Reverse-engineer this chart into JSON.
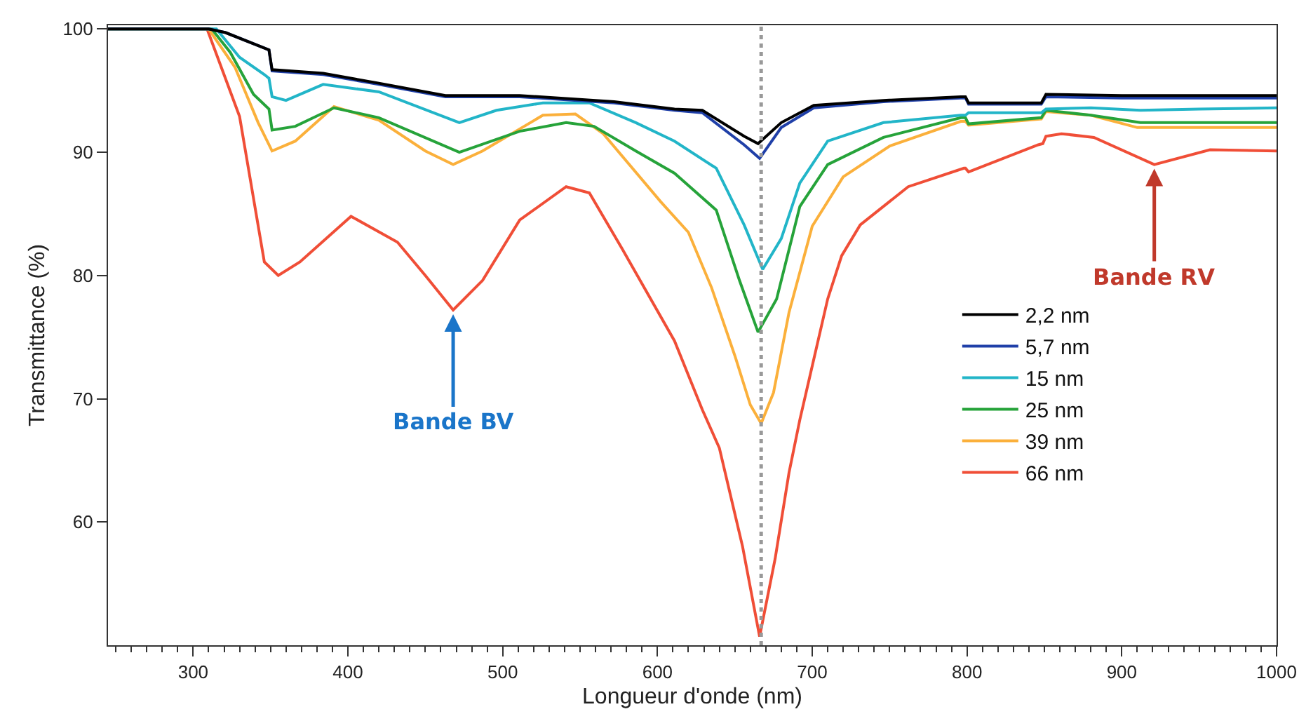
{
  "chart_data": {
    "type": "line",
    "xlabel": "Longueur d'onde (nm)",
    "ylabel": "Transmittance (%)",
    "xlim": [
      245,
      1000
    ],
    "ylim": [
      50,
      100.3
    ],
    "xticks": [
      300,
      400,
      500,
      600,
      700,
      800,
      900,
      1000
    ],
    "yticks": [
      60,
      70,
      80,
      90,
      100
    ],
    "grid": false,
    "legend": "right",
    "marker": "none",
    "line_style": "solid",
    "ref_lines": [
      {
        "axis": "x",
        "value": 667,
        "color": "#999999",
        "line_style": "dotted"
      }
    ],
    "annotations": [
      {
        "text": "Bande BV",
        "x": 468,
        "y": 77.2
      },
      {
        "text": "Bande RV",
        "x": 921,
        "y": 89.0
      }
    ],
    "series": [
      {
        "name": "2,2 nm",
        "color": "#000000",
        "x": [
          245,
          310,
          321,
          345,
          349,
          351,
          384,
          420,
          463,
          511,
          572,
          611,
          629,
          656,
          665,
          680,
          701,
          746,
          796,
          799,
          801,
          848,
          851,
          900,
          1000
        ],
        "values": [
          100,
          100,
          99.7,
          98.5,
          98.3,
          96.7,
          96.4,
          95.6,
          94.6,
          94.6,
          94.1,
          93.5,
          93.4,
          91.3,
          90.7,
          92.4,
          93.8,
          94.2,
          94.5,
          94.5,
          94.0,
          94.0,
          94.7,
          94.6,
          94.6
        ]
      },
      {
        "name": "5,7 nm",
        "color": "#1f3fa8",
        "x": [
          245,
          310,
          321,
          345,
          349,
          351,
          384,
          420,
          463,
          511,
          572,
          611,
          629,
          656,
          666,
          680,
          701,
          746,
          796,
          799,
          801,
          848,
          851,
          900,
          1000
        ],
        "values": [
          100,
          100,
          99.7,
          98.5,
          98.3,
          96.6,
          96.3,
          95.5,
          94.5,
          94.5,
          94.0,
          93.4,
          93.2,
          90.6,
          89.5,
          92.0,
          93.6,
          94.1,
          94.4,
          94.4,
          93.9,
          93.9,
          94.5,
          94.4,
          94.4
        ]
      },
      {
        "name": "15 nm",
        "color": "#22b5c8",
        "x": [
          245,
          315,
          330,
          346,
          349,
          351,
          360,
          384,
          420,
          472,
          496,
          526,
          556,
          586,
          611,
          638,
          656,
          668,
          680,
          692,
          710,
          746,
          796,
          799,
          801,
          848,
          851,
          880,
          912,
          950,
          1000
        ],
        "values": [
          100,
          100,
          97.7,
          96.3,
          96.0,
          94.5,
          94.2,
          95.5,
          94.9,
          92.4,
          93.4,
          94.0,
          94.0,
          92.4,
          90.9,
          88.7,
          84.1,
          80.5,
          83.0,
          87.5,
          90.9,
          92.4,
          93.0,
          93.0,
          93.2,
          93.2,
          93.5,
          93.6,
          93.4,
          93.5,
          93.6
        ]
      },
      {
        "name": "25 nm",
        "color": "#26a33a",
        "x": [
          245,
          312,
          324,
          339,
          349,
          351,
          366,
          391,
          420,
          472,
          511,
          541,
          559,
          586,
          611,
          638,
          653,
          665,
          677,
          692,
          710,
          746,
          796,
          799,
          801,
          848,
          851,
          880,
          912,
          950,
          1000
        ],
        "values": [
          100,
          100,
          98.1,
          94.7,
          93.5,
          91.8,
          92.1,
          93.6,
          92.8,
          90.0,
          91.7,
          92.4,
          92.1,
          90.1,
          88.3,
          85.3,
          79.6,
          75.4,
          78.1,
          85.6,
          89.0,
          91.2,
          92.8,
          92.8,
          92.3,
          92.8,
          93.4,
          93.0,
          92.4,
          92.4,
          92.4
        ]
      },
      {
        "name": "39 nm",
        "color": "#fbb03b",
        "x": [
          245,
          310,
          327,
          342,
          351,
          366,
          391,
          420,
          450,
          468,
          487,
          526,
          547,
          565,
          602,
          620,
          635,
          650,
          660,
          667,
          675,
          685,
          700,
          720,
          750,
          796,
          799,
          801,
          848,
          851,
          880,
          910,
          940,
          1000
        ],
        "values": [
          100,
          100,
          96.9,
          92.4,
          90.1,
          90.9,
          93.7,
          92.6,
          90.1,
          89.0,
          90.1,
          93.0,
          93.1,
          91.5,
          86.0,
          83.5,
          79.0,
          73.5,
          69.5,
          68.0,
          70.5,
          77.0,
          84.0,
          88.0,
          90.5,
          92.5,
          92.5,
          92.2,
          92.7,
          93.3,
          93.0,
          92.0,
          92.0,
          92.0
        ]
      },
      {
        "name": "66 nm",
        "color": "#f04e37",
        "x": [
          245,
          309,
          330,
          346,
          355,
          369,
          402,
          432,
          450,
          468,
          487,
          511,
          541,
          556,
          577,
          611,
          629,
          640,
          655,
          666,
          676,
          685,
          692,
          710,
          719,
          731,
          762,
          798,
          799,
          801,
          846,
          849,
          851,
          861,
          882,
          921,
          957,
          1000
        ],
        "values": [
          100,
          100,
          92.9,
          81.1,
          80.0,
          81.1,
          84.8,
          82.7,
          80.0,
          77.2,
          79.6,
          84.5,
          87.2,
          86.7,
          82.2,
          74.7,
          69.1,
          66.0,
          58.0,
          50.7,
          57.0,
          64.0,
          68.3,
          78.1,
          81.6,
          84.1,
          87.2,
          88.7,
          88.7,
          88.4,
          90.6,
          90.7,
          91.3,
          91.5,
          91.2,
          89.0,
          90.2,
          90.1
        ]
      }
    ]
  }
}
